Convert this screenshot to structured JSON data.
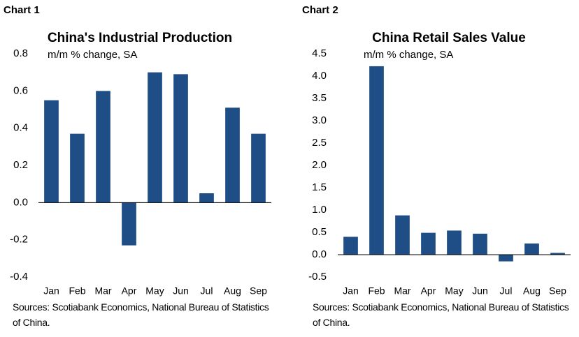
{
  "chart_data": [
    {
      "type": "bar",
      "label": "Chart 1",
      "title": "China's Industrial Production",
      "subtitle": "m/m % change, SA",
      "categories": [
        "Jan",
        "Feb",
        "Mar",
        "Apr",
        "May",
        "Jun",
        "Jul",
        "Aug",
        "Sep"
      ],
      "values": [
        0.55,
        0.37,
        0.6,
        -0.23,
        0.7,
        0.69,
        0.05,
        0.51,
        0.37
      ],
      "color": "#1f4e86",
      "ylim": [
        -0.4,
        0.8
      ],
      "yticks": [
        0.8,
        0.6,
        0.4,
        0.2,
        {
          "value": 0,
          "label": "0.0"
        },
        -0.2,
        -0.4
      ],
      "grid": false,
      "source": "Sources: Scotiabank Economics, National Bureau of Statistics of China."
    },
    {
      "type": "bar",
      "label": "Chart 2",
      "title": "China Retail Sales Value",
      "subtitle": "m/m % change, SA",
      "categories": [
        "Jan",
        "Feb",
        "Mar",
        "Apr",
        "May",
        "Jun",
        "Jul",
        "Aug",
        "Sep"
      ],
      "values": [
        0.4,
        4.22,
        0.88,
        0.49,
        0.54,
        0.47,
        -0.15,
        0.25,
        0.04
      ],
      "color": "#1f4e86",
      "ylim": [
        -0.5,
        4.5
      ],
      "yticks": [
        4.5,
        {
          "value": 4,
          "label": "4.0"
        },
        3.5,
        {
          "value": 3,
          "label": "3.0"
        },
        2.5,
        {
          "value": 2,
          "label": "2.0"
        },
        1.5,
        {
          "value": 1,
          "label": "1.0"
        },
        0.5,
        {
          "value": 0,
          "label": "0.0"
        },
        -0.5
      ],
      "grid": false,
      "source": "Sources: Scotiabank Economics, National Bureau of Statistics of China."
    }
  ]
}
